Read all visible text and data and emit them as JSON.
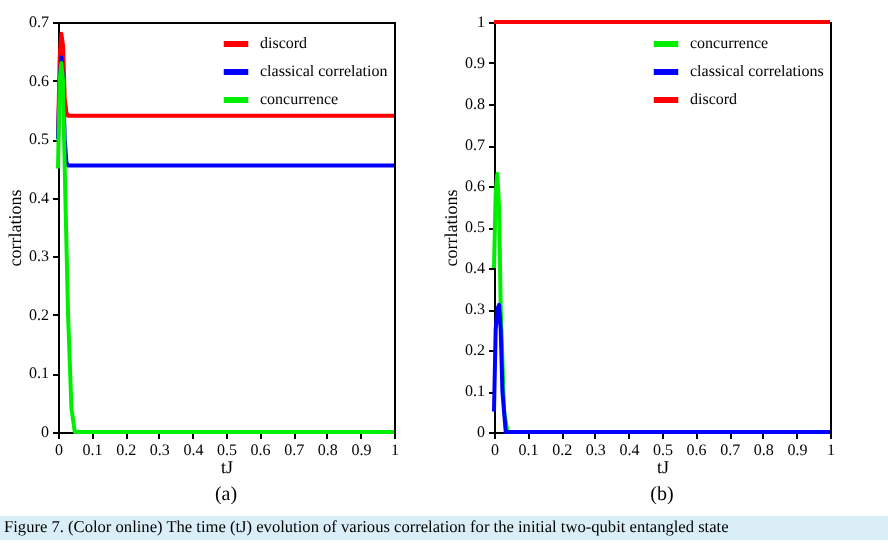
{
  "chart_data": [
    {
      "type": "line",
      "title": "(a)",
      "xlabel": "tJ",
      "ylabel": "corrlations",
      "xlim": [
        0,
        1
      ],
      "ylim": [
        0,
        0.7
      ],
      "xticks": [
        0,
        0.1,
        0.2,
        0.3,
        0.4,
        0.5,
        0.6,
        0.7,
        0.8,
        0.9,
        1
      ],
      "yticks": [
        0,
        0.1,
        0.2,
        0.3,
        0.4,
        0.5,
        0.6,
        0.7
      ],
      "grid": false,
      "legend": "top right",
      "annotations": [
        "Figure 7. (Color online) The time (tJ) evolution of various correlation for the initial two-qubit entangled state"
      ],
      "series": [
        {
          "name": "discord",
          "color": "#ff0000",
          "x": [
            0,
            0.005,
            0.01,
            0.015,
            0.02,
            0.025,
            0.03,
            1
          ],
          "values": [
            0.5,
            0.64,
            0.68,
            0.66,
            0.57,
            0.545,
            0.54,
            0.54
          ]
        },
        {
          "name": "classical correlation",
          "color": "#0000ff",
          "x": [
            0,
            0.005,
            0.01,
            0.015,
            0.02,
            0.025,
            0.03,
            1
          ],
          "values": [
            0.5,
            0.6,
            0.64,
            0.6,
            0.5,
            0.46,
            0.455,
            0.455
          ]
        },
        {
          "name": "concurrence",
          "color": "#00ee00",
          "x": [
            0,
            0.005,
            0.01,
            0.015,
            0.02,
            0.03,
            0.04,
            0.05,
            1
          ],
          "values": [
            0.45,
            0.6,
            0.63,
            0.6,
            0.45,
            0.2,
            0.04,
            0,
            0
          ]
        }
      ]
    },
    {
      "type": "line",
      "title": "(b)",
      "xlabel": "tJ",
      "ylabel": "corrlations",
      "xlim": [
        0,
        1
      ],
      "ylim": [
        0,
        1
      ],
      "xticks": [
        0,
        0.1,
        0.2,
        0.3,
        0.4,
        0.5,
        0.6,
        0.7,
        0.8,
        0.9,
        1
      ],
      "yticks": [
        0,
        0.1,
        0.2,
        0.3,
        0.4,
        0.5,
        0.6,
        0.7,
        0.8,
        0.9,
        1
      ],
      "grid": false,
      "legend": "top right",
      "series": [
        {
          "name": "concurrence",
          "color": "#00ee00",
          "x": [
            0,
            0.005,
            0.01,
            0.015,
            0.02,
            0.03,
            0.04,
            1
          ],
          "values": [
            0.4,
            0.58,
            0.63,
            0.55,
            0.3,
            0.05,
            0,
            0
          ]
        },
        {
          "name": "classical correlations",
          "color": "#0000ff",
          "x": [
            0,
            0.005,
            0.01,
            0.015,
            0.02,
            0.025,
            0.035,
            1
          ],
          "values": [
            0.05,
            0.25,
            0.3,
            0.31,
            0.25,
            0.1,
            0,
            0
          ]
        },
        {
          "name": "discord",
          "color": "#ff0000",
          "x": [
            0,
            1
          ],
          "values": [
            1,
            1
          ]
        }
      ]
    }
  ]
}
